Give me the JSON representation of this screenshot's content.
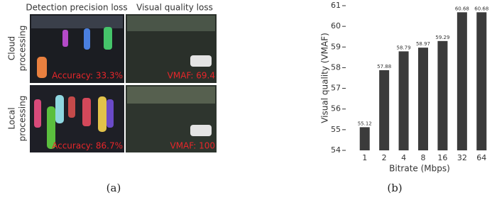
{
  "panel_a": {
    "column_headers": [
      "Detection precision loss",
      "Visual quality loss"
    ],
    "row_labels": [
      [
        "Cloud",
        "processing"
      ],
      [
        "Local",
        "processing"
      ]
    ],
    "overlays": [
      [
        "Accuracy: 33.3%",
        "VMAF: 69.4"
      ],
      [
        "Accuracy: 86.7%",
        "VMAF: 100"
      ]
    ]
  },
  "captions": [
    "(a)",
    "(b)"
  ],
  "chart_data": {
    "type": "bar",
    "x_label": "Bitrate (Mbps)",
    "y_label": "Visual quality (VMAF)",
    "categories": [
      "1",
      "2",
      "4",
      "8",
      "16",
      "32",
      "64"
    ],
    "values": [
      55.12,
      57.88,
      58.79,
      58.97,
      59.29,
      60.68,
      60.68
    ],
    "color": "#3b3b3b",
    "ylim": [
      54,
      61
    ],
    "yticks": [
      54,
      55,
      56,
      57,
      58,
      59,
      60,
      61
    ],
    "grid": false
  }
}
